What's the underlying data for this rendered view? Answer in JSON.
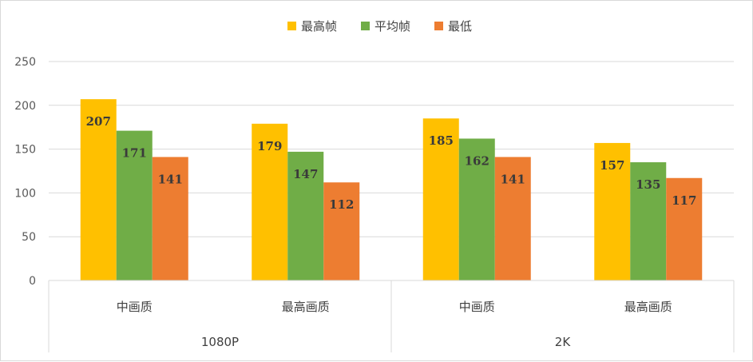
{
  "chart_data": {
    "type": "bar",
    "title": "",
    "xlabel": "",
    "ylabel": "",
    "ylim": [
      0,
      250
    ],
    "yticks": [
      0,
      50,
      100,
      150,
      200,
      250
    ],
    "grid": true,
    "legend_position": "top",
    "groups": [
      {
        "label": "1080P",
        "categories": [
          "中画质",
          "最高画质"
        ]
      },
      {
        "label": "2K",
        "categories": [
          "中画质",
          "最高画质"
        ]
      }
    ],
    "categories": [
      "中画质",
      "最高画质",
      "中画质",
      "最高画质"
    ],
    "series": [
      {
        "name": "最高帧",
        "color": "#FFC000",
        "values": [
          207,
          179,
          185,
          157
        ]
      },
      {
        "name": "平均帧",
        "color": "#70AD47",
        "values": [
          171,
          147,
          162,
          135
        ]
      },
      {
        "name": "最低",
        "color": "#ED7D31",
        "values": [
          141,
          112,
          141,
          117
        ]
      }
    ]
  }
}
